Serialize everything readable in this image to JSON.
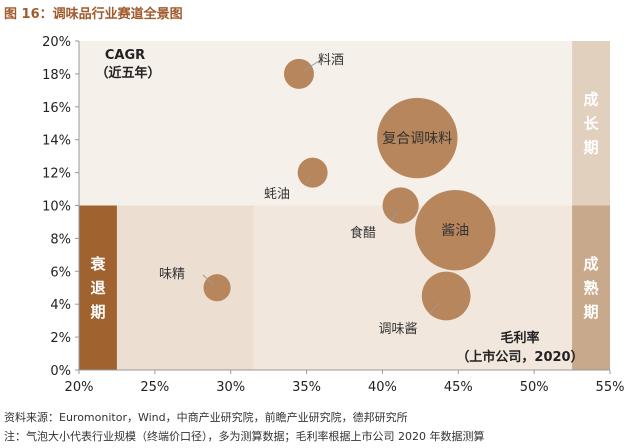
{
  "figure": {
    "title": "图 16：调味品行业赛道全景图",
    "source": "资料来源：Euromonitor，Wind，中商产业研究院，前瞻产业研究院，德邦研究所",
    "note": "注：气泡大小代表行业规模（终端价口径），多为测算数据；毛利率根据上市公司 2020 年数据测算"
  },
  "chart_data": {
    "type": "scatter",
    "subtype": "bubble",
    "x_label_line1": "毛利率",
    "x_label_line2": "（上市公司，2020）",
    "y_label_line1": "CAGR",
    "y_label_line2": "（近五年）",
    "xlim": [
      0.2,
      0.55
    ],
    "ylim": [
      0.0,
      0.2
    ],
    "x_ticks": [
      {
        "v": 0.2,
        "label": "20%"
      },
      {
        "v": 0.25,
        "label": "25%"
      },
      {
        "v": 0.3,
        "label": "30%"
      },
      {
        "v": 0.35,
        "label": "35%"
      },
      {
        "v": 0.4,
        "label": "40%"
      },
      {
        "v": 0.45,
        "label": "45%"
      },
      {
        "v": 0.5,
        "label": "50%"
      },
      {
        "v": 0.55,
        "label": "55%"
      }
    ],
    "y_ticks": [
      {
        "v": 0.0,
        "label": "0%"
      },
      {
        "v": 0.02,
        "label": "2%"
      },
      {
        "v": 0.04,
        "label": "4%"
      },
      {
        "v": 0.06,
        "label": "6%"
      },
      {
        "v": 0.08,
        "label": "8%"
      },
      {
        "v": 0.1,
        "label": "10%"
      },
      {
        "v": 0.12,
        "label": "12%"
      },
      {
        "v": 0.14,
        "label": "14%"
      },
      {
        "v": 0.16,
        "label": "16%"
      },
      {
        "v": 0.18,
        "label": "18%"
      },
      {
        "v": 0.2,
        "label": "20%"
      }
    ],
    "zones": [
      {
        "label": "",
        "x0": 0.225,
        "x1": 0.315,
        "y0": 0.0,
        "y1": 0.1,
        "color": "#ecdfd2"
      },
      {
        "label": "",
        "x0": 0.315,
        "x1": 0.525,
        "y0": 0.0,
        "y1": 0.1,
        "color": "#f1e7dc"
      },
      {
        "label": "",
        "x0": 0.225,
        "x1": 0.525,
        "y0": 0.1,
        "y1": 0.2,
        "color": "#f6f0ea"
      },
      {
        "label": "衰退期",
        "x0": 0.2,
        "x1": 0.225,
        "y0": 0.0,
        "y1": 0.1,
        "color": "#a0622f"
      },
      {
        "label": "",
        "x0": 0.2,
        "x1": 0.225,
        "y0": 0.1,
        "y1": 0.2,
        "color": "#f6f0ea"
      },
      {
        "label": "成熟期",
        "x0": 0.525,
        "x1": 0.55,
        "y0": 0.0,
        "y1": 0.1,
        "color": "#c9a98b"
      },
      {
        "label": "成长期",
        "x0": 0.525,
        "x1": 0.55,
        "y0": 0.1,
        "y1": 0.2,
        "color": "#e2d0bf"
      }
    ],
    "series": [
      {
        "points": [
          {
            "label": "料酒",
            "x": 0.345,
            "y": 0.18,
            "size": 1.1
          },
          {
            "label": "复合调味料",
            "x": 0.423,
            "y": 0.141,
            "size": 7.9
          },
          {
            "label": "蚝油",
            "x": 0.354,
            "y": 0.12,
            "size": 1.1
          },
          {
            "label": "食醋",
            "x": 0.412,
            "y": 0.1,
            "size": 1.6
          },
          {
            "label": "酱油",
            "x": 0.448,
            "y": 0.085,
            "size": 7.9
          },
          {
            "label": "味精",
            "x": 0.291,
            "y": 0.05,
            "size": 0.9
          },
          {
            "label": "调味酱",
            "x": 0.442,
            "y": 0.045,
            "size": 2.9
          }
        ]
      }
    ],
    "colors": {
      "bubble": "#b8865c",
      "axis": "#999999",
      "zone_text_dark": "#ffffff",
      "zone_text_light": "#ffffff",
      "label": "#333333"
    }
  }
}
